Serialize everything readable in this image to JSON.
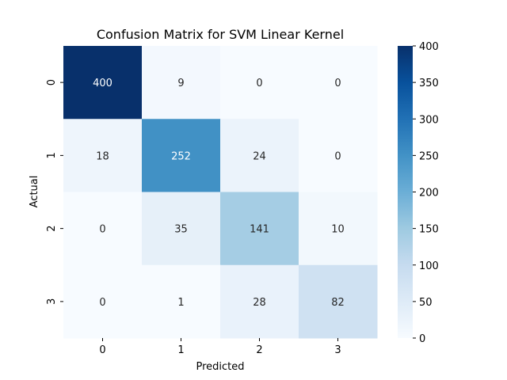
{
  "chart_data": {
    "type": "heatmap",
    "title": "Confusion Matrix for SVM Linear Kernel",
    "xlabel": "Predicted",
    "ylabel": "Actual",
    "x_categories": [
      "0",
      "1",
      "2",
      "3"
    ],
    "y_categories": [
      "0",
      "1",
      "2",
      "3"
    ],
    "values": [
      [
        400,
        9,
        0,
        0
      ],
      [
        18,
        252,
        24,
        0
      ],
      [
        0,
        35,
        141,
        10
      ],
      [
        0,
        1,
        28,
        82
      ]
    ],
    "colormap": "Blues",
    "color_range": [
      0,
      400
    ],
    "colorbar_ticks": [
      "0",
      "50",
      "100",
      "150",
      "200",
      "250",
      "300",
      "350",
      "400"
    ],
    "annotations_shown": true,
    "grid": false
  }
}
